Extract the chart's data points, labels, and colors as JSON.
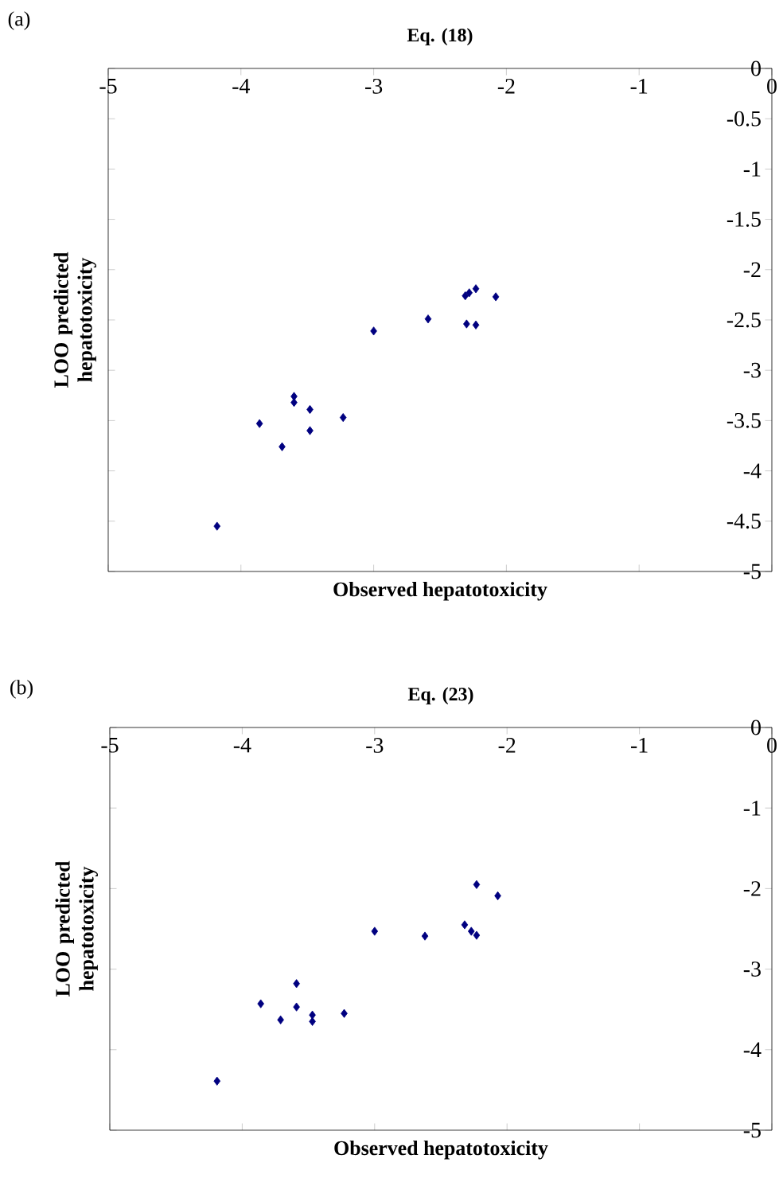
{
  "chart_data": [
    {
      "type": "scatter",
      "title": "Eq. (18)",
      "xlabel": "Observed hepatotoxicity",
      "ylabel": "LOO predicted hepatotoxicity",
      "annotations": [
        "(a)"
      ],
      "marker": "diamond",
      "grid": false,
      "legend": false,
      "xlim": [
        -5,
        0
      ],
      "ylim": [
        -5,
        0
      ],
      "xticks": [
        -5,
        -4,
        -3,
        -2,
        -1,
        0
      ],
      "yticks": [
        -5,
        -4.5,
        -4,
        -3.5,
        -3,
        -2.5,
        -2,
        -1.5,
        -1,
        -0.5,
        0
      ],
      "series": [
        {
          "color": "#000080",
          "x": [
            -4.18,
            -3.86,
            -3.69,
            -3.6,
            -3.6,
            -3.48,
            -3.48,
            -3.23,
            -3.0,
            -2.59,
            -2.31,
            -2.28,
            -2.23,
            -2.3,
            -2.23,
            -2.08
          ],
          "values": [
            -4.55,
            -3.53,
            -3.76,
            -3.26,
            -3.32,
            -3.39,
            -3.6,
            -3.47,
            -2.61,
            -2.49,
            -2.26,
            -2.23,
            -2.19,
            -2.54,
            -2.55,
            -2.27
          ]
        }
      ]
    },
    {
      "type": "scatter",
      "title": "Eq. (23)",
      "xlabel": "Observed hepatotoxicity",
      "ylabel": "LOO predicted hepatotoxicity",
      "annotations": [
        "(b)"
      ],
      "marker": "diamond",
      "grid": false,
      "legend": false,
      "xlim": [
        -5,
        0
      ],
      "ylim": [
        -5,
        0
      ],
      "xticks": [
        -5,
        -4,
        -3,
        -2,
        -1,
        0
      ],
      "yticks": [
        -5,
        -4,
        -3,
        -2,
        -1,
        0
      ],
      "series": [
        {
          "color": "#000080",
          "x": [
            -4.19,
            -3.86,
            -3.71,
            -3.59,
            -3.59,
            -3.47,
            -3.47,
            -3.23,
            -3.0,
            -2.62,
            -2.32,
            -2.27,
            -2.23,
            -2.23,
            -2.07
          ],
          "values": [
            -4.39,
            -3.43,
            -3.63,
            -3.18,
            -3.47,
            -3.57,
            -3.65,
            -3.55,
            -2.53,
            -2.59,
            -2.45,
            -2.53,
            -2.58,
            -1.95,
            -2.09
          ]
        }
      ]
    }
  ]
}
